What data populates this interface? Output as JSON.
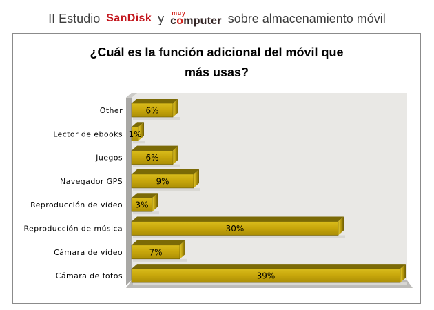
{
  "header": {
    "prefix": "II Estudio",
    "sandisk_logo": "SanDisk",
    "conjunction": "y",
    "muy": "muy",
    "computer_pre": "c",
    "computer_o": "o",
    "computer_post": "mputer",
    "suffix": "sobre almacenamiento móvil"
  },
  "chart": {
    "title_line1": "¿Cuál es la función adicional del móvil que",
    "title_line2": "más usas?"
  },
  "chart_data": {
    "type": "bar",
    "orientation": "horizontal",
    "style": "3d",
    "title": "¿Cuál es la función adicional del móvil que más usas?",
    "categories": [
      "Other",
      "Lector de ebooks",
      "Juegos",
      "Navegador GPS",
      "Reproducción de vídeo",
      "Reproducción de música",
      "Cámara de vídeo",
      "Cámara de fotos"
    ],
    "values": [
      6,
      1,
      6,
      9,
      3,
      30,
      7,
      39
    ],
    "labels": [
      "6%",
      "1%",
      "6%",
      "9%",
      "3%",
      "30%",
      "7%",
      "39%"
    ],
    "unit": "%",
    "xlim": [
      0,
      40
    ],
    "grid": false,
    "legend": null,
    "colors": {
      "bar_front_light": "#d9bc1c",
      "bar_front": "#c9a80c",
      "bar_front_dark": "#aa8d05",
      "bar_top": "#7b6a06",
      "bar_end_light": "#e6cc33",
      "bar_end_mid": "#c1a310",
      "bar_end_dark": "#6f5d02",
      "bar_outline": "#6d5c04",
      "bar_shadow": "#d8d7d3",
      "plot_bg": "#e9e8e5",
      "wall": "#a9a8a5",
      "wall_top": "#cccbc8",
      "floor": "#bcbbb8",
      "label": "#000000"
    }
  }
}
